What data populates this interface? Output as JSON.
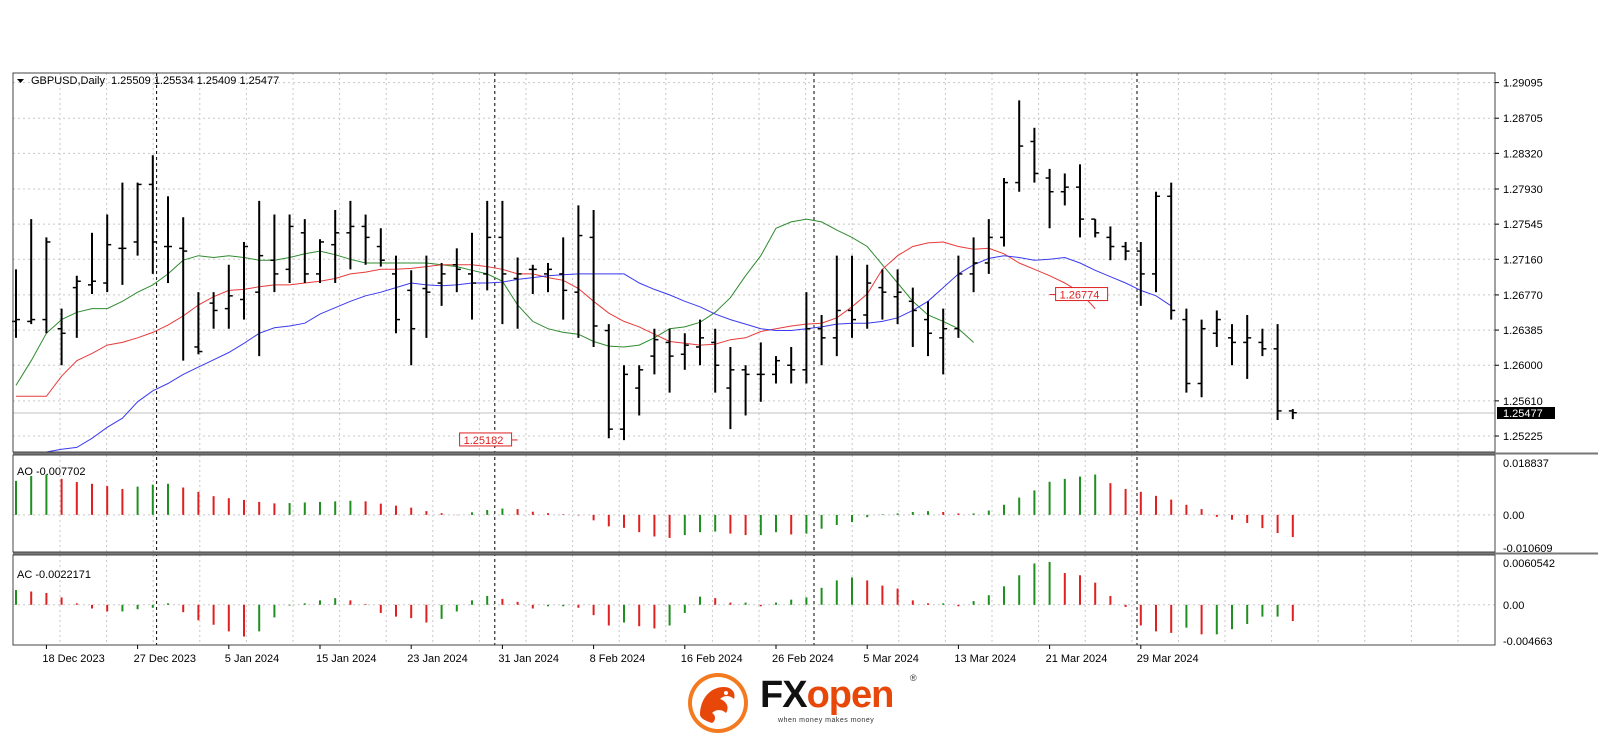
{
  "chart_data": {
    "type": "ohlc",
    "header": {
      "symbol_label": "GBPUSD,Daily",
      "ohlc_text": "1.25509 1.25534 1.25409 1.25477"
    },
    "price_axis": {
      "range": [
        1.2505,
        1.292
      ],
      "ticks": [
        "1.29095",
        "1.28705",
        "1.28320",
        "1.27930",
        "1.27545",
        "1.27160",
        "1.26770",
        "1.26385",
        "1.26000",
        "1.25610",
        "1.25225"
      ],
      "current_price": "1.25477"
    },
    "x_labels": [
      "18 Dec 2023",
      "27 Dec 2023",
      "5 Jan 2024",
      "15 Jan 2024",
      "23 Jan 2024",
      "31 Jan 2024",
      "8 Feb 2024",
      "16 Feb 2024",
      "26 Feb 2024",
      "5 Mar 2024",
      "13 Mar 2024",
      "21 Mar 2024",
      "29 Mar 2024"
    ],
    "x_label_bar_index": [
      2,
      8,
      14,
      20,
      26,
      32,
      38,
      44,
      50,
      56,
      62,
      68,
      74
    ],
    "separator_bar_index": [
      9.25,
      31.5,
      52.5,
      73.75
    ],
    "annotations": [
      {
        "text": "1.25182",
        "price": 1.25182,
        "bar": 33
      },
      {
        "text": "1.26774",
        "price": 1.26774,
        "bar": 68
      }
    ],
    "bars": [
      {
        "o": 1.2648,
        "h": 1.2705,
        "l": 1.263,
        "c": 1.265
      },
      {
        "o": 1.2648,
        "h": 1.276,
        "l": 1.2645,
        "c": 1.265
      },
      {
        "o": 1.265,
        "h": 1.274,
        "l": 1.2635,
        "c": 1.2735
      },
      {
        "o": 1.264,
        "h": 1.2662,
        "l": 1.26,
        "c": 1.2635
      },
      {
        "o": 1.2685,
        "h": 1.2698,
        "l": 1.263,
        "c": 1.2692
      },
      {
        "o": 1.2688,
        "h": 1.2745,
        "l": 1.2678,
        "c": 1.2692
      },
      {
        "o": 1.269,
        "h": 1.2765,
        "l": 1.268,
        "c": 1.2732
      },
      {
        "o": 1.2728,
        "h": 1.28,
        "l": 1.2688,
        "c": 1.2728
      },
      {
        "o": 1.2735,
        "h": 1.28,
        "l": 1.272,
        "c": 1.2798
      },
      {
        "o": 1.2798,
        "h": 1.283,
        "l": 1.27,
        "c": 1.2735
      },
      {
        "o": 1.273,
        "h": 1.2785,
        "l": 1.269,
        "c": 1.273
      },
      {
        "o": 1.2728,
        "h": 1.2762,
        "l": 1.2605,
        "c": 1.2725
      },
      {
        "o": 1.262,
        "h": 1.268,
        "l": 1.2612,
        "c": 1.2615
      },
      {
        "o": 1.2668,
        "h": 1.268,
        "l": 1.264,
        "c": 1.266
      },
      {
        "o": 1.2662,
        "h": 1.271,
        "l": 1.264,
        "c": 1.2676
      },
      {
        "o": 1.2672,
        "h": 1.2735,
        "l": 1.265,
        "c": 1.273
      },
      {
        "o": 1.268,
        "h": 1.278,
        "l": 1.261,
        "c": 1.272
      },
      {
        "o": 1.2715,
        "h": 1.2765,
        "l": 1.268,
        "c": 1.27
      },
      {
        "o": 1.2705,
        "h": 1.2765,
        "l": 1.269,
        "c": 1.2752
      },
      {
        "o": 1.2745,
        "h": 1.276,
        "l": 1.269,
        "c": 1.27
      },
      {
        "o": 1.27,
        "h": 1.2738,
        "l": 1.269,
        "c": 1.2735
      },
      {
        "o": 1.2732,
        "h": 1.277,
        "l": 1.269,
        "c": 1.2745
      },
      {
        "o": 1.2745,
        "h": 1.278,
        "l": 1.2705,
        "c": 1.2752
      },
      {
        "o": 1.2752,
        "h": 1.2765,
        "l": 1.271,
        "c": 1.274
      },
      {
        "o": 1.273,
        "h": 1.275,
        "l": 1.2708,
        "c": 1.2715
      },
      {
        "o": 1.27,
        "h": 1.272,
        "l": 1.2635,
        "c": 1.265
      },
      {
        "o": 1.2682,
        "h": 1.2704,
        "l": 1.26,
        "c": 1.264
      },
      {
        "o": 1.2684,
        "h": 1.272,
        "l": 1.263,
        "c": 1.268
      },
      {
        "o": 1.269,
        "h": 1.2712,
        "l": 1.2665,
        "c": 1.27
      },
      {
        "o": 1.271,
        "h": 1.2728,
        "l": 1.268,
        "c": 1.2705
      },
      {
        "o": 1.27,
        "h": 1.2745,
        "l": 1.265,
        "c": 1.269
      },
      {
        "o": 1.27,
        "h": 1.278,
        "l": 1.2682,
        "c": 1.274
      },
      {
        "o": 1.274,
        "h": 1.278,
        "l": 1.2645,
        "c": 1.27
      },
      {
        "o": 1.2695,
        "h": 1.2718,
        "l": 1.264,
        "c": 1.27
      },
      {
        "o": 1.2705,
        "h": 1.271,
        "l": 1.2678,
        "c": 1.2705
      },
      {
        "o": 1.27,
        "h": 1.2712,
        "l": 1.268,
        "c": 1.2705
      },
      {
        "o": 1.27,
        "h": 1.274,
        "l": 1.265,
        "c": 1.2682
      },
      {
        "o": 1.268,
        "h": 1.2775,
        "l": 1.263,
        "c": 1.2742
      },
      {
        "o": 1.274,
        "h": 1.277,
        "l": 1.262,
        "c": 1.2643
      },
      {
        "o": 1.2638,
        "h": 1.2645,
        "l": 1.252,
        "c": 1.253
      },
      {
        "o": 1.253,
        "h": 1.26,
        "l": 1.2518,
        "c": 1.259
      },
      {
        "o": 1.2575,
        "h": 1.26,
        "l": 1.2545,
        "c": 1.2595
      },
      {
        "o": 1.261,
        "h": 1.264,
        "l": 1.259,
        "c": 1.2628
      },
      {
        "o": 1.2625,
        "h": 1.264,
        "l": 1.257,
        "c": 1.261
      },
      {
        "o": 1.2612,
        "h": 1.2635,
        "l": 1.2595,
        "c": 1.2622
      },
      {
        "o": 1.262,
        "h": 1.265,
        "l": 1.26,
        "c": 1.263
      },
      {
        "o": 1.2625,
        "h": 1.264,
        "l": 1.257,
        "c": 1.26
      },
      {
        "o": 1.2575,
        "h": 1.262,
        "l": 1.253,
        "c": 1.2595
      },
      {
        "o": 1.2595,
        "h": 1.26,
        "l": 1.2545,
        "c": 1.259
      },
      {
        "o": 1.259,
        "h": 1.2625,
        "l": 1.256,
        "c": 1.259
      },
      {
        "o": 1.259,
        "h": 1.261,
        "l": 1.258,
        "c": 1.2605
      },
      {
        "o": 1.26,
        "h": 1.262,
        "l": 1.258,
        "c": 1.2595
      },
      {
        "o": 1.2595,
        "h": 1.268,
        "l": 1.258,
        "c": 1.264
      },
      {
        "o": 1.264,
        "h": 1.2655,
        "l": 1.26,
        "c": 1.263
      },
      {
        "o": 1.263,
        "h": 1.272,
        "l": 1.261,
        "c": 1.266
      },
      {
        "o": 1.266,
        "h": 1.272,
        "l": 1.263,
        "c": 1.265
      },
      {
        "o": 1.2655,
        "h": 1.271,
        "l": 1.264,
        "c": 1.269
      },
      {
        "o": 1.2685,
        "h": 1.2705,
        "l": 1.265,
        "c": 1.268
      },
      {
        "o": 1.2675,
        "h": 1.2705,
        "l": 1.2645,
        "c": 1.268
      },
      {
        "o": 1.267,
        "h": 1.2685,
        "l": 1.262,
        "c": 1.266
      },
      {
        "o": 1.265,
        "h": 1.267,
        "l": 1.261,
        "c": 1.2635
      },
      {
        "o": 1.263,
        "h": 1.2662,
        "l": 1.259,
        "c": 1.264
      },
      {
        "o": 1.264,
        "h": 1.272,
        "l": 1.263,
        "c": 1.27
      },
      {
        "o": 1.27,
        "h": 1.274,
        "l": 1.268,
        "c": 1.2712
      },
      {
        "o": 1.2712,
        "h": 1.276,
        "l": 1.27,
        "c": 1.274
      },
      {
        "o": 1.274,
        "h": 1.2805,
        "l": 1.273,
        "c": 1.28
      },
      {
        "o": 1.28,
        "h": 1.289,
        "l": 1.279,
        "c": 1.284
      },
      {
        "o": 1.2845,
        "h": 1.286,
        "l": 1.28,
        "c": 1.281
      },
      {
        "o": 1.2805,
        "h": 1.2815,
        "l": 1.275,
        "c": 1.279
      },
      {
        "o": 1.279,
        "h": 1.281,
        "l": 1.2775,
        "c": 1.2795
      },
      {
        "o": 1.2795,
        "h": 1.282,
        "l": 1.274,
        "c": 1.276
      },
      {
        "o": 1.276,
        "h": 1.276,
        "l": 1.274,
        "c": 1.2745
      },
      {
        "o": 1.274,
        "h": 1.2752,
        "l": 1.2715,
        "c": 1.273
      },
      {
        "o": 1.273,
        "h": 1.2735,
        "l": 1.2715,
        "c": 1.2725
      },
      {
        "o": 1.2725,
        "h": 1.2735,
        "l": 1.2665,
        "c": 1.27
      },
      {
        "o": 1.27,
        "h": 1.279,
        "l": 1.268,
        "c": 1.2785
      },
      {
        "o": 1.2785,
        "h": 1.28,
        "l": 1.265,
        "c": 1.266
      },
      {
        "o": 1.265,
        "h": 1.2662,
        "l": 1.257,
        "c": 1.258
      },
      {
        "o": 1.258,
        "h": 1.265,
        "l": 1.2565,
        "c": 1.264
      },
      {
        "o": 1.2635,
        "h": 1.266,
        "l": 1.262,
        "c": 1.265
      },
      {
        "o": 1.263,
        "h": 1.2645,
        "l": 1.26,
        "c": 1.2625
      },
      {
        "o": 1.2625,
        "h": 1.2655,
        "l": 1.2585,
        "c": 1.263
      },
      {
        "o": 1.2625,
        "h": 1.264,
        "l": 1.261,
        "c": 1.2618
      },
      {
        "o": 1.2618,
        "h": 1.2645,
        "l": 1.254,
        "c": 1.255
      },
      {
        "o": 1.255,
        "h": 1.2552,
        "l": 1.2541,
        "c": 1.2548
      }
    ],
    "lines": [
      {
        "name": "green",
        "color": "#2e8b2e",
        "start": 0,
        "values": [
          1.2578,
          1.2605,
          1.2635,
          1.265,
          1.2658,
          1.2662,
          1.2662,
          1.267,
          1.268,
          1.2688,
          1.27,
          1.2715,
          1.272,
          1.2718,
          1.272,
          1.2718,
          1.2715,
          1.2715,
          1.2718,
          1.2722,
          1.2725,
          1.2721,
          1.2716,
          1.2712,
          1.2712,
          1.2712,
          1.2712,
          1.2712,
          1.271,
          1.2708,
          1.2704,
          1.27,
          1.2692,
          1.2666,
          1.2648,
          1.264,
          1.2636,
          1.2634,
          1.2626,
          1.2621,
          1.262,
          1.2622,
          1.263,
          1.264,
          1.2642,
          1.2647,
          1.2658,
          1.2674,
          1.2698,
          1.272,
          1.275,
          1.2757,
          1.276,
          1.2757,
          1.2748,
          1.274,
          1.273,
          1.271,
          1.269,
          1.267,
          1.2655,
          1.2648,
          1.264,
          1.2625
        ]
      },
      {
        "name": "red",
        "color": "#e83a3a",
        "start": 0,
        "values": [
          1.2566,
          1.2566,
          1.2566,
          1.2588,
          1.2605,
          1.2613,
          1.2622,
          1.2625,
          1.263,
          1.2636,
          1.2644,
          1.2654,
          1.2666,
          1.2675,
          1.2682,
          1.2683,
          1.2686,
          1.2688,
          1.2688,
          1.269,
          1.2692,
          1.2695,
          1.27,
          1.2702,
          1.2705,
          1.2705,
          1.2706,
          1.2708,
          1.271,
          1.271,
          1.271,
          1.2708,
          1.2705,
          1.27,
          1.27,
          1.2696,
          1.2693,
          1.2684,
          1.267,
          1.2657,
          1.2648,
          1.2642,
          1.2634,
          1.2626,
          1.2624,
          1.2622,
          1.2623,
          1.2628,
          1.263,
          1.2637,
          1.264,
          1.2643,
          1.2645,
          1.2646,
          1.2652,
          1.2664,
          1.2678,
          1.2705,
          1.272,
          1.273,
          1.2734,
          1.2735,
          1.273,
          1.2727,
          1.2728,
          1.2722,
          1.2712,
          1.2705,
          1.2698,
          1.269,
          1.268,
          1.2662
        ]
      },
      {
        "name": "blue",
        "color": "#3a3af0",
        "start": 2,
        "values": [
          1.2505,
          1.2508,
          1.251,
          1.252,
          1.2532,
          1.2542,
          1.256,
          1.2572,
          1.258,
          1.259,
          1.2598,
          1.2606,
          1.2614,
          1.2624,
          1.2635,
          1.2641,
          1.2643,
          1.2646,
          1.2656,
          1.2663,
          1.267,
          1.2676,
          1.268,
          1.2685,
          1.269,
          1.2688,
          1.2687,
          1.2688,
          1.269,
          1.269,
          1.2691,
          1.2694,
          1.2696,
          1.2698,
          1.2699,
          1.27,
          1.27,
          1.27,
          1.27,
          1.269,
          1.2683,
          1.2677,
          1.267,
          1.2664,
          1.2656,
          1.265,
          1.2645,
          1.264,
          1.2638,
          1.2638,
          1.264,
          1.2642,
          1.2645,
          1.2646,
          1.2646,
          1.2648,
          1.2652,
          1.266,
          1.267,
          1.2685,
          1.27,
          1.271,
          1.2717,
          1.272,
          1.2718,
          1.2715,
          1.2716,
          1.2718,
          1.2712,
          1.2704,
          1.2697,
          1.269,
          1.2682,
          1.2676,
          1.2665
        ]
      }
    ],
    "ao": {
      "label": "AO -0.007702",
      "ticks": [
        "0.018837",
        "0.00",
        "-0.010609"
      ],
      "range": [
        -0.0115,
        0.0194
      ],
      "values": [
        0.0118,
        0.0135,
        0.014,
        0.0125,
        0.0114,
        0.0108,
        0.01,
        0.009,
        0.0098,
        0.0105,
        0.0108,
        0.0095,
        0.008,
        0.0065,
        0.0058,
        0.0052,
        0.0045,
        0.004,
        0.0041,
        0.0043,
        0.0045,
        0.0047,
        0.0049,
        0.0047,
        0.0039,
        0.0032,
        0.0025,
        0.0013,
        0.0006,
        -0.0001,
        0.0009,
        0.0017,
        0.0022,
        0.002,
        0.0011,
        0.0006,
        0.0002,
        -0.0002,
        -0.0019,
        -0.004,
        -0.0045,
        -0.006,
        -0.0075,
        -0.008,
        -0.007,
        -0.006,
        -0.0058,
        -0.0065,
        -0.007,
        -0.007,
        -0.006,
        -0.0068,
        -0.0065,
        -0.0048,
        -0.0035,
        -0.0025,
        -0.0008,
        0.0002,
        0.0005,
        0.001,
        0.0013,
        0.001,
        0.0005,
        0.0005,
        0.0015,
        0.0035,
        0.006,
        0.0085,
        0.0115,
        0.0125,
        0.0133,
        0.014,
        0.011,
        0.009,
        0.008,
        0.0066,
        0.0053,
        0.0035,
        0.002,
        -0.0007,
        -0.0017,
        -0.0028,
        -0.0046,
        -0.0063,
        -0.0077
      ]
    },
    "ac": {
      "label": "AC -0.0022171",
      "ticks": [
        "0.0060542",
        "0.00",
        "-0.004663"
      ],
      "range": [
        -0.0049,
        0.0062
      ],
      "values": [
        0.002,
        0.0018,
        0.0016,
        0.001,
        0.0002,
        -0.0005,
        -0.0009,
        -0.0009,
        -0.0006,
        -0.0004,
        0.0002,
        -0.001,
        -0.0021,
        -0.0027,
        -0.0036,
        -0.0043,
        -0.0036,
        -0.0017,
        -0.0001,
        0.0002,
        0.0006,
        0.0009,
        0.0006,
        0.0001,
        -0.0011,
        -0.0016,
        -0.0018,
        -0.0024,
        -0.0019,
        -0.0009,
        0.0006,
        0.0012,
        0.0008,
        0.0004,
        -0.0005,
        -0.0002,
        -0.0002,
        -0.0004,
        -0.0014,
        -0.0028,
        -0.0024,
        -0.0029,
        -0.0032,
        -0.0028,
        -0.0011,
        0.0011,
        0.0009,
        0.0003,
        0.0003,
        -0.0002,
        0.0003,
        0.0007,
        0.001,
        0.0023,
        0.0033,
        0.0037,
        0.0033,
        0.0026,
        0.0022,
        0.0006,
        0.0002,
        0.0002,
        -0.0002,
        0.0005,
        0.0013,
        0.0025,
        0.004,
        0.0056,
        0.0058,
        0.0043,
        0.004,
        0.003,
        0.0012,
        -0.0003,
        -0.0028,
        -0.0036,
        -0.0038,
        -0.0031,
        -0.004,
        -0.004,
        -0.0033,
        -0.0026,
        -0.0016,
        -0.0016,
        -0.0022
      ]
    }
  },
  "logo": {
    "brand_fx": "FX",
    "brand_open": "open",
    "registered": "®",
    "tagline": "when money makes money"
  }
}
